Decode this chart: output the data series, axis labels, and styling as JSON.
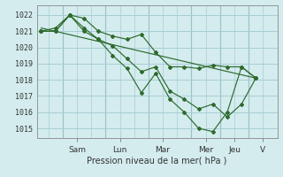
{
  "xlabel": "Pression niveau de la mer( hPa )",
  "bg_color": "#d4ecee",
  "grid_color": "#a8cdd4",
  "line_color": "#2d6a2d",
  "marker_color": "#2d6a2d",
  "ylim": [
    1014.4,
    1022.6
  ],
  "xlim": [
    -0.3,
    16.5
  ],
  "yticks": [
    1015,
    1016,
    1017,
    1018,
    1019,
    1020,
    1021,
    1022
  ],
  "day_labels": [
    "Sam",
    "Lun",
    "Mar",
    "Mer",
    "Jeu",
    "V"
  ],
  "day_positions": [
    2.5,
    5.5,
    8.5,
    11.5,
    13.5,
    15.5
  ],
  "day_vlines": [
    1.5,
    4.5,
    7.5,
    10.5,
    12.5,
    14.5
  ],
  "series1_x": [
    0,
    1,
    2,
    3,
    4,
    5,
    6,
    7,
    8,
    9,
    10,
    11,
    12,
    13,
    14,
    15
  ],
  "series1_y": [
    1021.0,
    1021.2,
    1022.0,
    1021.8,
    1021.0,
    1020.7,
    1020.5,
    1020.8,
    1019.7,
    1018.8,
    1018.8,
    1018.7,
    1018.9,
    1018.8,
    1018.8,
    1018.1
  ],
  "series2_x": [
    0,
    1,
    2,
    3,
    4,
    5,
    6,
    7,
    8,
    9,
    10,
    11,
    12,
    13,
    14,
    15
  ],
  "series2_y": [
    1021.0,
    1021.0,
    1022.0,
    1021.0,
    1020.5,
    1020.1,
    1019.3,
    1018.5,
    1018.8,
    1017.3,
    1016.8,
    1016.2,
    1016.5,
    1015.7,
    1016.5,
    1018.1
  ],
  "series3_x": [
    0,
    1,
    2,
    3,
    4,
    5,
    6,
    7,
    8,
    9,
    10,
    11,
    12,
    13,
    14,
    15
  ],
  "series3_y": [
    1021.0,
    1021.0,
    1022.0,
    1021.2,
    1020.5,
    1019.5,
    1018.7,
    1017.2,
    1018.4,
    1016.8,
    1016.0,
    1015.0,
    1014.8,
    1016.0,
    1018.8,
    1018.1
  ],
  "trend_x": [
    0,
    15
  ],
  "trend_y": [
    1021.2,
    1018.1
  ],
  "minor_xgrid": [
    0.5,
    1.5,
    2.5,
    3.5,
    4.5,
    5.5,
    6.5,
    7.5,
    8.5,
    9.5,
    10.5,
    11.5,
    12.5,
    13.5,
    14.5,
    15.5
  ]
}
